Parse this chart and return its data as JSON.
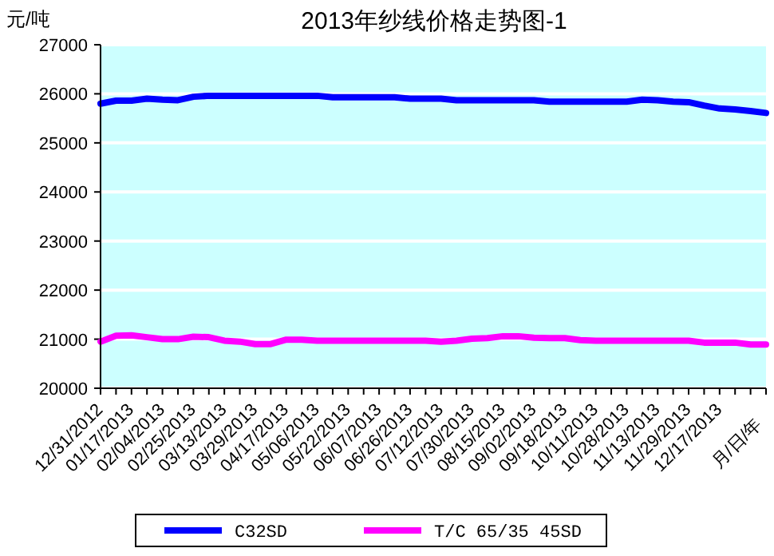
{
  "chart_data": {
    "type": "line",
    "title": "2013年纱线价格走势图-1",
    "ylabel": "元/吨",
    "xlabel": "月/日/年",
    "categories": [
      "12/31/2012",
      null,
      "01/17/2013",
      null,
      "02/04/2013",
      null,
      "02/25/2013",
      null,
      "03/13/2013",
      null,
      "03/29/2013",
      null,
      "04/17/2013",
      null,
      "05/06/2013",
      null,
      "05/22/2013",
      null,
      "06/07/2013",
      null,
      "06/26/2013",
      null,
      "07/12/2013",
      null,
      "07/30/2013",
      null,
      "08/15/2013",
      null,
      "09/02/2013",
      null,
      "09/18/2013",
      null,
      "10/11/2013",
      null,
      "10/28/2013",
      null,
      "11/13/2013",
      null,
      "11/29/2013",
      null,
      "12/17/2013",
      null,
      null,
      null
    ],
    "series": [
      {
        "name": "C32SD",
        "color": "#0000ff",
        "values": [
          25800,
          25860,
          25860,
          25900,
          25880,
          25870,
          25940,
          25960,
          25960,
          25960,
          25960,
          25960,
          25960,
          25960,
          25960,
          25930,
          25930,
          25930,
          25930,
          25930,
          25900,
          25900,
          25900,
          25870,
          25870,
          25870,
          25870,
          25870,
          25870,
          25840,
          25840,
          25840,
          25840,
          25840,
          25840,
          25880,
          25870,
          25840,
          25830,
          25760,
          25700,
          25680,
          25650,
          25610
        ]
      },
      {
        "name": "T/C 65/35 45SD",
        "color": "#ff00ff",
        "values": [
          20950,
          21070,
          21080,
          21040,
          21000,
          21000,
          21050,
          21040,
          20970,
          20950,
          20900,
          20900,
          20990,
          20990,
          20970,
          20970,
          20970,
          20970,
          20970,
          20970,
          20970,
          20970,
          20950,
          20970,
          21010,
          21020,
          21060,
          21060,
          21030,
          21020,
          21020,
          20980,
          20970,
          20970,
          20970,
          20970,
          20970,
          20970,
          20970,
          20930,
          20930,
          20930,
          20890,
          20890
        ]
      }
    ],
    "ylim": [
      20000,
      27000
    ],
    "yticks": [
      20000,
      21000,
      22000,
      23000,
      24000,
      25000,
      26000,
      27000
    ],
    "grid": "y",
    "legend": "bottom"
  }
}
